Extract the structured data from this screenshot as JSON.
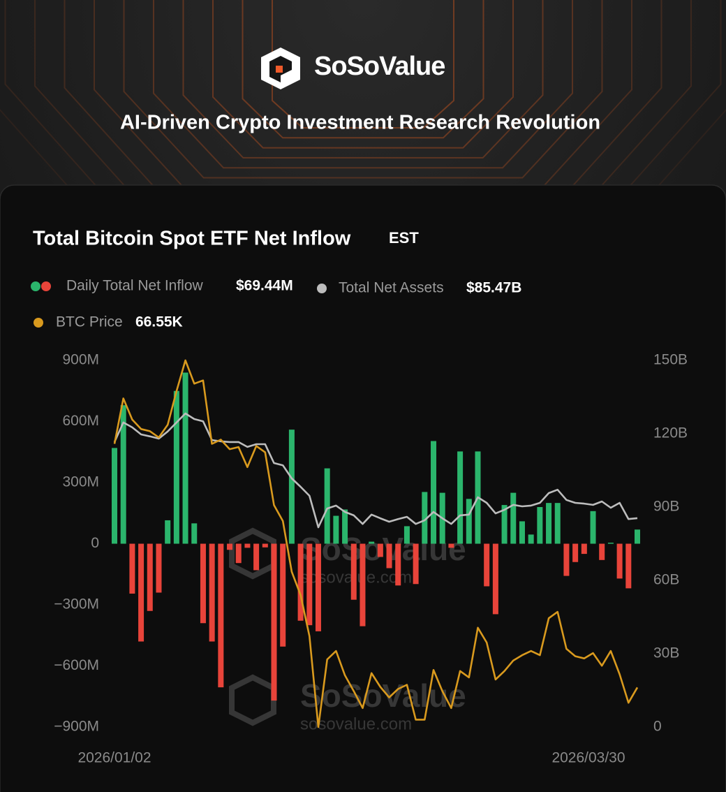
{
  "header": {
    "brand": "SoSoValue",
    "tagline": "AI-Driven Crypto Investment Research Revolution"
  },
  "chart_data": {
    "type": "bar",
    "title": "Total Bitcoin Spot ETF Net Inflow",
    "timezone": "EST",
    "categories": [
      "2026/01/02",
      null,
      null,
      null,
      null,
      null,
      null,
      null,
      null,
      null,
      null,
      null,
      null,
      null,
      null,
      null,
      null,
      null,
      null,
      null,
      null,
      null,
      null,
      null,
      null,
      null,
      null,
      null,
      null,
      null,
      null,
      null,
      null,
      null,
      null,
      null,
      null,
      null,
      null,
      null,
      null,
      null,
      null,
      null,
      null,
      null,
      null,
      null,
      null,
      null,
      null,
      null,
      null,
      null,
      null,
      null,
      null,
      null,
      null,
      "2026/03/30"
    ],
    "series": [
      {
        "name": "Daily Total Net Inflow",
        "type": "bar",
        "color": "#2bb56c",
        "negative_color": "#e8443a",
        "latest_label": "$69.44M",
        "values": [
          470,
          680,
          -245,
          -480,
          -330,
          -240,
          115,
          750,
          840,
          100,
          -390,
          -480,
          -705,
          -30,
          -95,
          -20,
          -130,
          -18,
          -770,
          -505,
          560,
          -378,
          -400,
          -430,
          370,
          137,
          168,
          -275,
          -405,
          10,
          -65,
          -120,
          -205,
          86,
          -198,
          254,
          504,
          250,
          -20,
          453,
          220,
          453,
          -209,
          -346,
          190,
          250,
          110,
          45,
          180,
          200,
          200,
          -158,
          -90,
          -50,
          160,
          -80,
          5,
          -171,
          -219,
          69.44
        ]
      },
      {
        "name": "Total Net Assets",
        "type": "line",
        "axis": "y2",
        "color": "#bdbdbd",
        "latest_label": "$85.47B",
        "values": [
          116.6,
          124.6,
          122.6,
          119.7,
          118.9,
          118,
          120.9,
          124.6,
          128.3,
          126,
          125.1,
          117.4,
          116.9,
          116.6,
          116.6,
          114.6,
          115.7,
          115.7,
          108,
          107.1,
          101.7,
          98.3,
          94.6,
          81.7,
          89.4,
          90.6,
          88,
          86.6,
          83.1,
          86.9,
          85.4,
          84,
          85.1,
          86,
          83.1,
          84.6,
          88,
          85.4,
          83.1,
          86.6,
          86.9,
          94,
          91.7,
          87.4,
          88.9,
          90.9,
          90.3,
          90.6,
          91.7,
          95.7,
          97.1,
          92.9,
          91.7,
          91.4,
          90.9,
          92.3,
          89.7,
          91.7,
          85.1,
          85.47
        ]
      },
      {
        "name": "BTC Price",
        "type": "line",
        "axis": "hidden",
        "color": "#d99a1e",
        "latest_label": "66.55K",
        "values": [
          89.6,
          93.9,
          91.9,
          91.0,
          90.8,
          90.2,
          91.4,
          94.6,
          97.5,
          95.3,
          95.6,
          89.6,
          90.0,
          89.1,
          89.3,
          87.4,
          89.4,
          88.8,
          83.8,
          82.3,
          77.5,
          75.3,
          71.4,
          62.8,
          69.2,
          70.0,
          67.7,
          66.2,
          64.6,
          67.9,
          66.6,
          65.6,
          66.4,
          66.8,
          63.5,
          63.5,
          68.2,
          66.2,
          64.6,
          68.1,
          67.5,
          72.2,
          70.8,
          67.3,
          68.1,
          69.1,
          69.6,
          70.0,
          69.6,
          73.1,
          73.7,
          70.2,
          69.5,
          69.3,
          69.8,
          68.6,
          70.0,
          67.8,
          65.1,
          66.55
        ]
      }
    ],
    "ylim": [
      -900,
      900
    ],
    "yticks": [
      {
        "value": 900,
        "label": "900M"
      },
      {
        "value": 600,
        "label": "600M"
      },
      {
        "value": 300,
        "label": "300M"
      },
      0,
      {
        "value": -300,
        "label": "−300M"
      },
      {
        "value": -600,
        "label": "−600M"
      },
      {
        "value": -900,
        "label": "−900M"
      }
    ],
    "y2lim": [
      0,
      150
    ],
    "y2ticks": [
      0,
      {
        "value": 30,
        "label": "30B"
      },
      {
        "value": 60,
        "label": "60B"
      },
      {
        "value": 90,
        "label": "90B"
      },
      {
        "value": 120,
        "label": "120B"
      },
      {
        "value": 150,
        "label": "150B"
      }
    ],
    "grid": false,
    "watermark": {
      "brand": "SoSoValue",
      "url": "sosovalue.com"
    }
  }
}
